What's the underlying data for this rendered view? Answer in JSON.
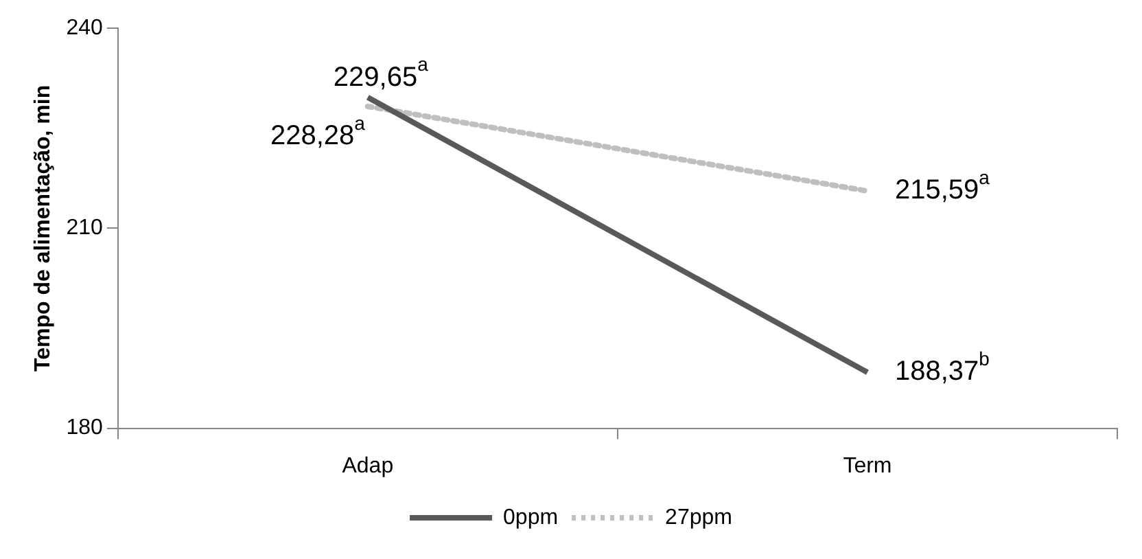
{
  "chart_data": {
    "type": "line",
    "ylabel": "Tempo de alimentação, min",
    "categories": [
      "Adap",
      "Term"
    ],
    "series": [
      {
        "name": "0ppm",
        "color": "#595959",
        "line_style": "solid",
        "values": [
          229.65,
          188.37
        ],
        "value_labels": [
          "229,65$^{a}$",
          "188,37$^{b}$"
        ]
      },
      {
        "name": "27ppm",
        "color": "#bfbfbf",
        "line_style": "dotted",
        "values": [
          228.28,
          215.59
        ],
        "value_labels": [
          "228,28$^{a}$",
          "215,59$^{a}$"
        ]
      }
    ],
    "ylim": [
      180,
      240
    ],
    "yticks": [
      180,
      210,
      240
    ],
    "grid": false,
    "legend": "bottom",
    "marker": "none"
  }
}
